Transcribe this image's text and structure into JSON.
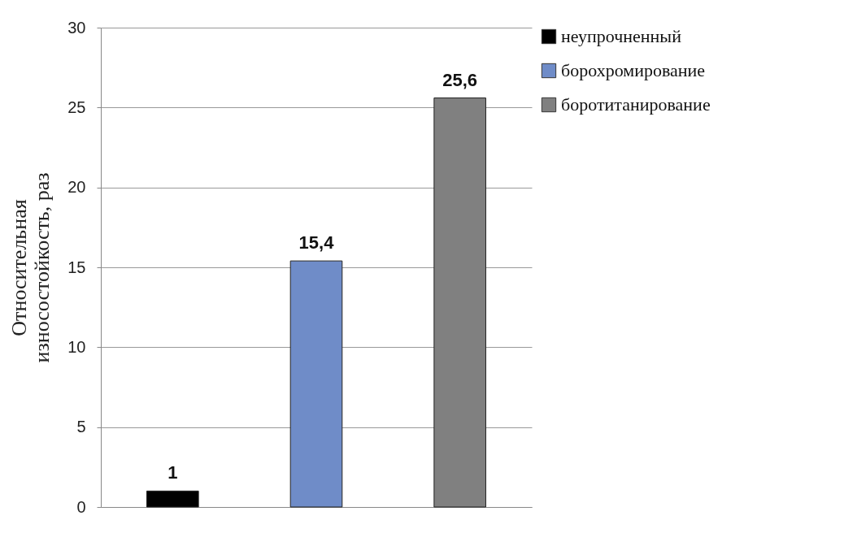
{
  "chart_data": {
    "type": "bar",
    "ylabel": "Относительная износостойкость, раз",
    "categories": [
      null,
      null,
      null
    ],
    "series": [
      {
        "name": "неупрочненный",
        "color": "#000000",
        "values": [
          1,
          null,
          null
        ],
        "value_labels": [
          "1",
          null,
          null
        ]
      },
      {
        "name": "борохромирование",
        "color": "#6f8cc8",
        "values": [
          null,
          15.4,
          null
        ],
        "value_labels": [
          null,
          "15,4",
          null
        ]
      },
      {
        "name": "боротитанирование",
        "color": "#808080",
        "values": [
          null,
          null,
          25.6
        ],
        "value_labels": [
          null,
          null,
          "25,6"
        ]
      }
    ],
    "ylim": [
      0,
      30
    ],
    "yticks": [
      0,
      5,
      10,
      15,
      20,
      25,
      30
    ],
    "grid": "y",
    "legend": "right"
  }
}
